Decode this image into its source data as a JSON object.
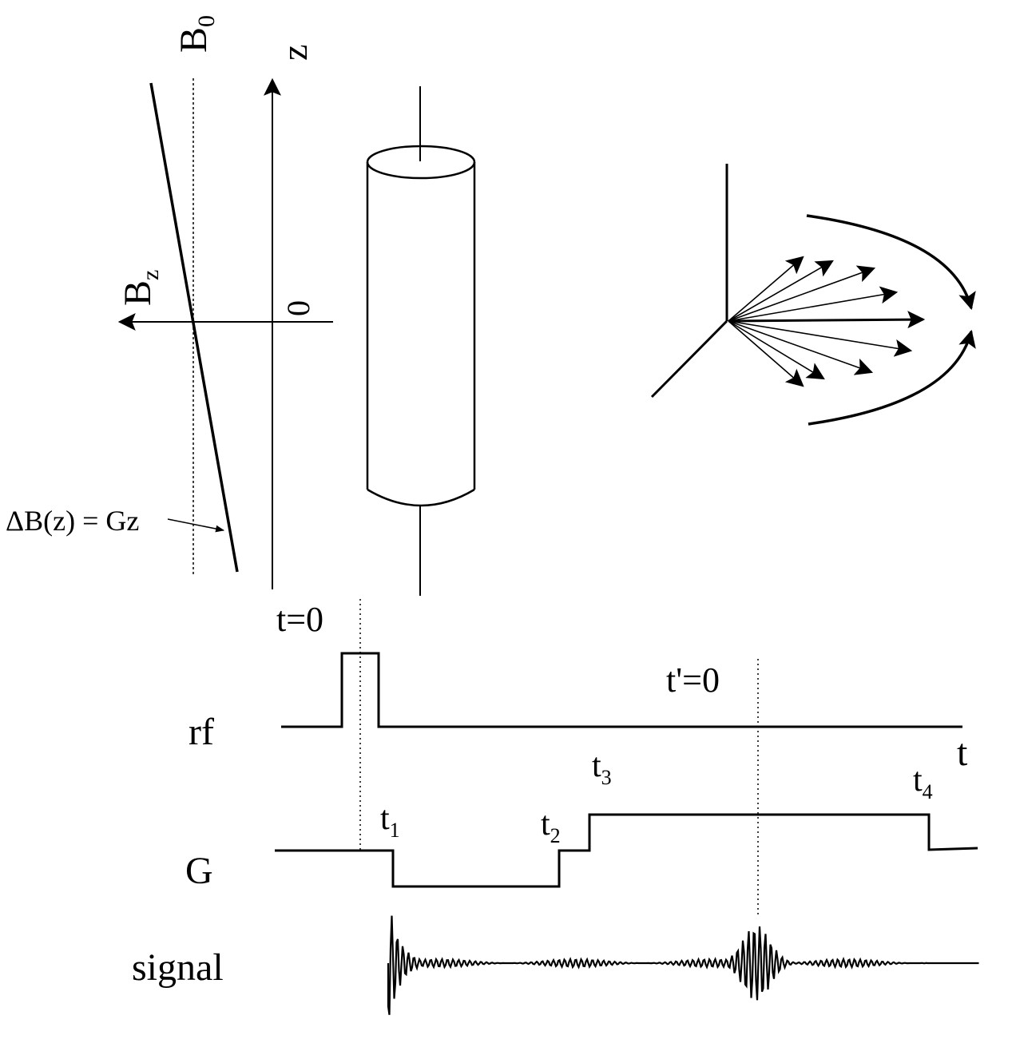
{
  "field_plot": {
    "b0_label": "B",
    "b0_sub": "0",
    "z_label": "z",
    "bz_label": "B",
    "bz_sub": "z",
    "zero_label": "0",
    "gradient_label": "ΔB(z) = Gz"
  },
  "timing": {
    "t0_label": "t=0",
    "tprime_label": "t'=0",
    "rf_label": "rf",
    "g_label": "G",
    "signal_label": "signal",
    "t_axis_label": "t",
    "t1": {
      "main": "t",
      "sub": "1"
    },
    "t2": {
      "main": "t",
      "sub": "2"
    },
    "t3": {
      "main": "t",
      "sub": "3"
    },
    "t4": {
      "main": "t",
      "sub": "4"
    }
  },
  "colors": {
    "ink": "#000000",
    "background": "#ffffff"
  }
}
